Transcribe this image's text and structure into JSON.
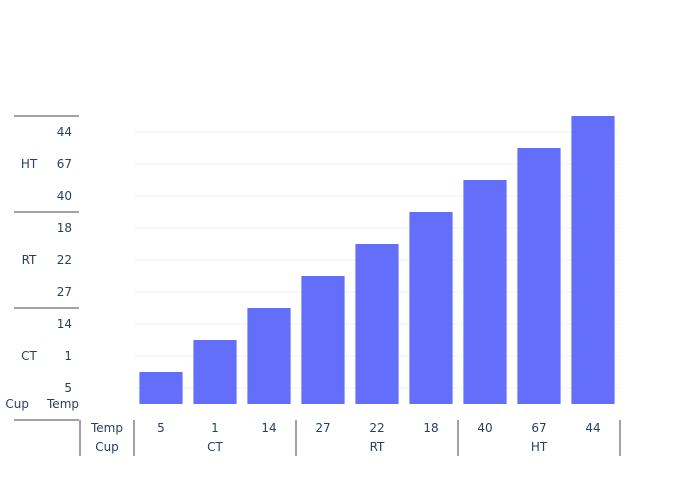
{
  "chart_data": {
    "type": "bar",
    "orientation": "vertical",
    "x_axis": {
      "level_titles": [
        "Temp",
        "Cup"
      ],
      "categories": [
        "5",
        "1",
        "14",
        "27",
        "22",
        "18",
        "40",
        "67",
        "44"
      ],
      "groups": [
        {
          "label": "CT",
          "categories": [
            "5",
            "1",
            "14"
          ]
        },
        {
          "label": "RT",
          "categories": [
            "27",
            "22",
            "18"
          ]
        },
        {
          "label": "HT",
          "categories": [
            "40",
            "67",
            "44"
          ]
        }
      ]
    },
    "y_axis": {
      "level_titles": [
        "Cup",
        "Temp"
      ],
      "categories": [
        "5",
        "1",
        "14",
        "27",
        "22",
        "18",
        "40",
        "67",
        "44"
      ],
      "groups": [
        {
          "label": "CT",
          "categories": [
            "5",
            "1",
            "14"
          ]
        },
        {
          "label": "RT",
          "categories": [
            "27",
            "22",
            "18"
          ]
        },
        {
          "label": "HT",
          "categories": [
            "40",
            "67",
            "44"
          ]
        }
      ]
    },
    "series": [
      {
        "values": [
          1,
          2,
          3,
          4,
          5,
          6,
          7,
          8,
          9
        ],
        "color": "#636efa"
      }
    ],
    "grid": true
  }
}
